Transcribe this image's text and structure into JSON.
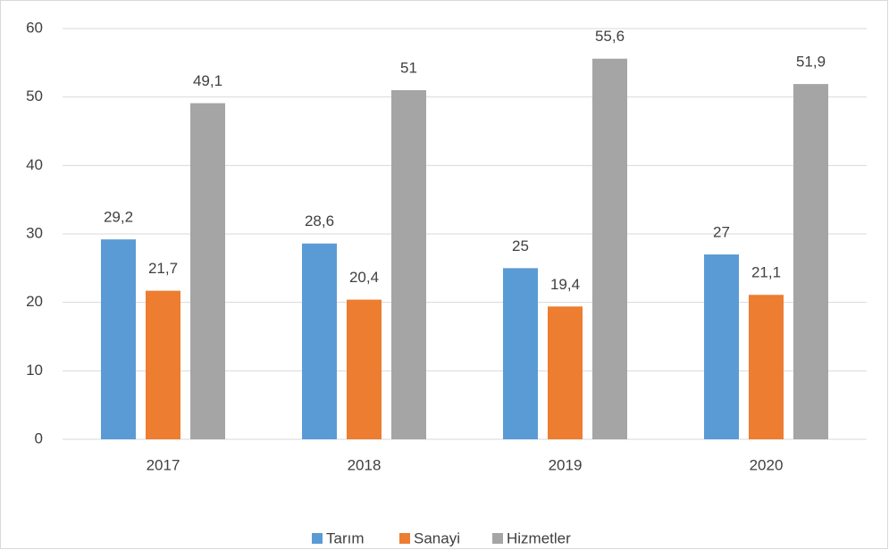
{
  "chart_data": {
    "type": "bar",
    "categories": [
      "2017",
      "2018",
      "2019",
      "2020"
    ],
    "series": [
      {
        "name": "Tarım",
        "color": "#5b9bd5",
        "values": [
          29.2,
          28.6,
          25,
          27
        ],
        "value_labels": [
          "29,2",
          "28,6",
          "25",
          "27"
        ]
      },
      {
        "name": "Sanayi",
        "color": "#ed7d31",
        "values": [
          21.7,
          20.4,
          19.4,
          21.1
        ],
        "value_labels": [
          "21,7",
          "20,4",
          "19,4",
          "21,1"
        ]
      },
      {
        "name": "Hizmetler",
        "color": "#a5a5a5",
        "values": [
          49.1,
          51,
          55.6,
          51.9
        ],
        "value_labels": [
          "49,1",
          "51",
          "55,6",
          "51,9"
        ]
      }
    ],
    "ylim": [
      0,
      60
    ],
    "yticks": [
      0,
      10,
      20,
      30,
      40,
      50,
      60
    ],
    "grid": true,
    "legend": "bottom"
  }
}
